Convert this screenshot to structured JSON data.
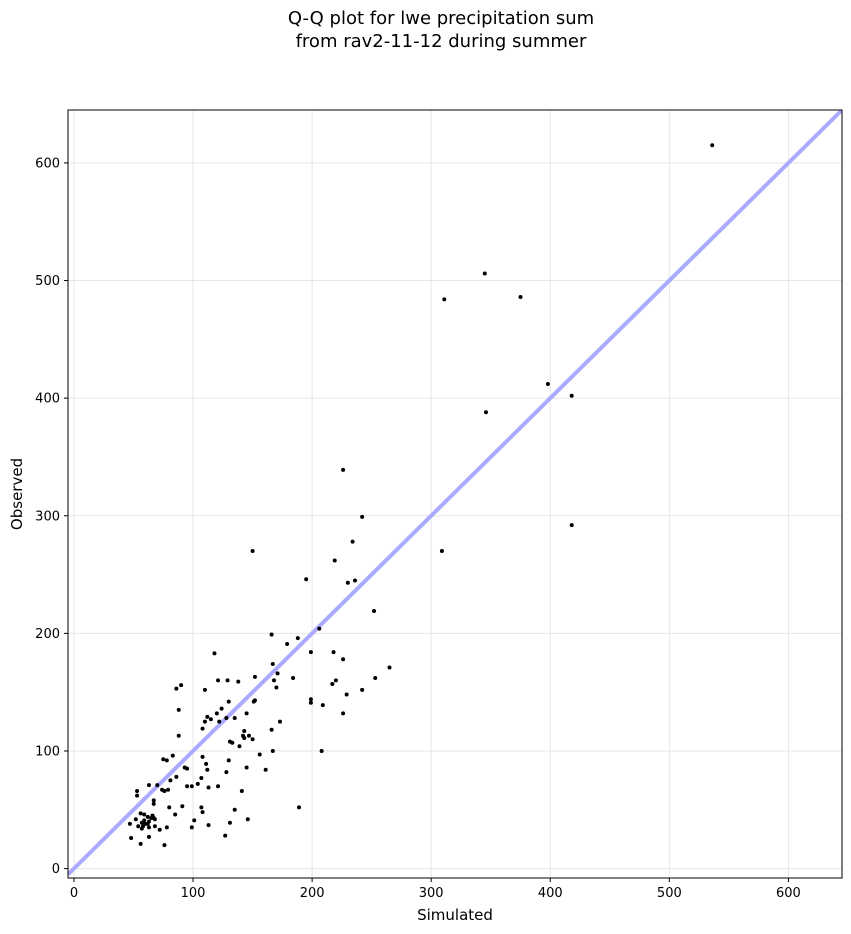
{
  "chart_data": {
    "type": "scatter",
    "title_lines": [
      "Q-Q plot for lwe precipitation sum",
      "from rav2-11-12 during summer"
    ],
    "xlabel": "Simulated",
    "ylabel": "Observed",
    "xlim": [
      -5,
      645
    ],
    "ylim": [
      -8,
      645
    ],
    "xticks": [
      0,
      100,
      200,
      300,
      400,
      500,
      600
    ],
    "yticks": [
      0,
      100,
      200,
      300,
      400,
      500,
      600
    ],
    "grid": true,
    "reference_line": {
      "from": [
        -5,
        -5
      ],
      "to": [
        645,
        645
      ],
      "color": "#aaaaff"
    },
    "point_color": "#000000",
    "points": [
      [
        536,
        615
      ],
      [
        345,
        506
      ],
      [
        375,
        486
      ],
      [
        311,
        484
      ],
      [
        398,
        412
      ],
      [
        418,
        402
      ],
      [
        346,
        388
      ],
      [
        418,
        292
      ],
      [
        309,
        270
      ],
      [
        226,
        339
      ],
      [
        242,
        299
      ],
      [
        234,
        278
      ],
      [
        150,
        270
      ],
      [
        236,
        245
      ],
      [
        195,
        246
      ],
      [
        230,
        243
      ],
      [
        219,
        262
      ],
      [
        252,
        219
      ],
      [
        206,
        204
      ],
      [
        166,
        199
      ],
      [
        188,
        196
      ],
      [
        179,
        191
      ],
      [
        199,
        184
      ],
      [
        218,
        184
      ],
      [
        118,
        183
      ],
      [
        226,
        178
      ],
      [
        265,
        171
      ],
      [
        167,
        174
      ],
      [
        184,
        162
      ],
      [
        220,
        160
      ],
      [
        253,
        162
      ],
      [
        217,
        157
      ],
      [
        90,
        156
      ],
      [
        86,
        153
      ],
      [
        110,
        152
      ],
      [
        171,
        166
      ],
      [
        152,
        163
      ],
      [
        121,
        160
      ],
      [
        129,
        160
      ],
      [
        138,
        159
      ],
      [
        168,
        160
      ],
      [
        170,
        154
      ],
      [
        242,
        152
      ],
      [
        229,
        148
      ],
      [
        199,
        144
      ],
      [
        199,
        141
      ],
      [
        209,
        139
      ],
      [
        130,
        142
      ],
      [
        151,
        142
      ],
      [
        152,
        143
      ],
      [
        124,
        136
      ],
      [
        120,
        132
      ],
      [
        115,
        127
      ],
      [
        112,
        129
      ],
      [
        110,
        125
      ],
      [
        122,
        125
      ],
      [
        108,
        119
      ],
      [
        128,
        128
      ],
      [
        135,
        128
      ],
      [
        145,
        132
      ],
      [
        173,
        125
      ],
      [
        226,
        132
      ],
      [
        88,
        135
      ],
      [
        143,
        117
      ],
      [
        142,
        113
      ],
      [
        143,
        111
      ],
      [
        166,
        118
      ],
      [
        147,
        113
      ],
      [
        150,
        110
      ],
      [
        131,
        108
      ],
      [
        133,
        107
      ],
      [
        139,
        104
      ],
      [
        167,
        100
      ],
      [
        208,
        100
      ],
      [
        88,
        113
      ],
      [
        156,
        97
      ],
      [
        108,
        95
      ],
      [
        83,
        96
      ],
      [
        75,
        93
      ],
      [
        78,
        92
      ],
      [
        111,
        89
      ],
      [
        93,
        86
      ],
      [
        95,
        85
      ],
      [
        130,
        92
      ],
      [
        128,
        82
      ],
      [
        112,
        84
      ],
      [
        145,
        86
      ],
      [
        161,
        84
      ],
      [
        86,
        78
      ],
      [
        70,
        71
      ],
      [
        81,
        75
      ],
      [
        99,
        70
      ],
      [
        104,
        72
      ],
      [
        113,
        69
      ],
      [
        107,
        77
      ],
      [
        95,
        70
      ],
      [
        63,
        71
      ],
      [
        76,
        66
      ],
      [
        79,
        67
      ],
      [
        53,
        66
      ],
      [
        53,
        62
      ],
      [
        74,
        67
      ],
      [
        141,
        66
      ],
      [
        85,
        46
      ],
      [
        67,
        58
      ],
      [
        67,
        55
      ],
      [
        80,
        52
      ],
      [
        91,
        53
      ],
      [
        107,
        52
      ],
      [
        108,
        48
      ],
      [
        135,
        50
      ],
      [
        121,
        70
      ],
      [
        56,
        47
      ],
      [
        59,
        46
      ],
      [
        66,
        45
      ],
      [
        62,
        44
      ],
      [
        65,
        43
      ],
      [
        68,
        42
      ],
      [
        59,
        41
      ],
      [
        63,
        40
      ],
      [
        62,
        38
      ],
      [
        57,
        39
      ],
      [
        54,
        36
      ],
      [
        57,
        34
      ],
      [
        63,
        35
      ],
      [
        68,
        36
      ],
      [
        72,
        33
      ],
      [
        78,
        35
      ],
      [
        60,
        38
      ],
      [
        47,
        38
      ],
      [
        52,
        42
      ],
      [
        48,
        26
      ],
      [
        56,
        21
      ],
      [
        63,
        27
      ],
      [
        76,
        20
      ],
      [
        99,
        35
      ],
      [
        101,
        41
      ],
      [
        113,
        37
      ],
      [
        127,
        28
      ],
      [
        131,
        39
      ],
      [
        146,
        42
      ],
      [
        189,
        52
      ],
      [
        67,
        43
      ],
      [
        58,
        36
      ]
    ]
  }
}
